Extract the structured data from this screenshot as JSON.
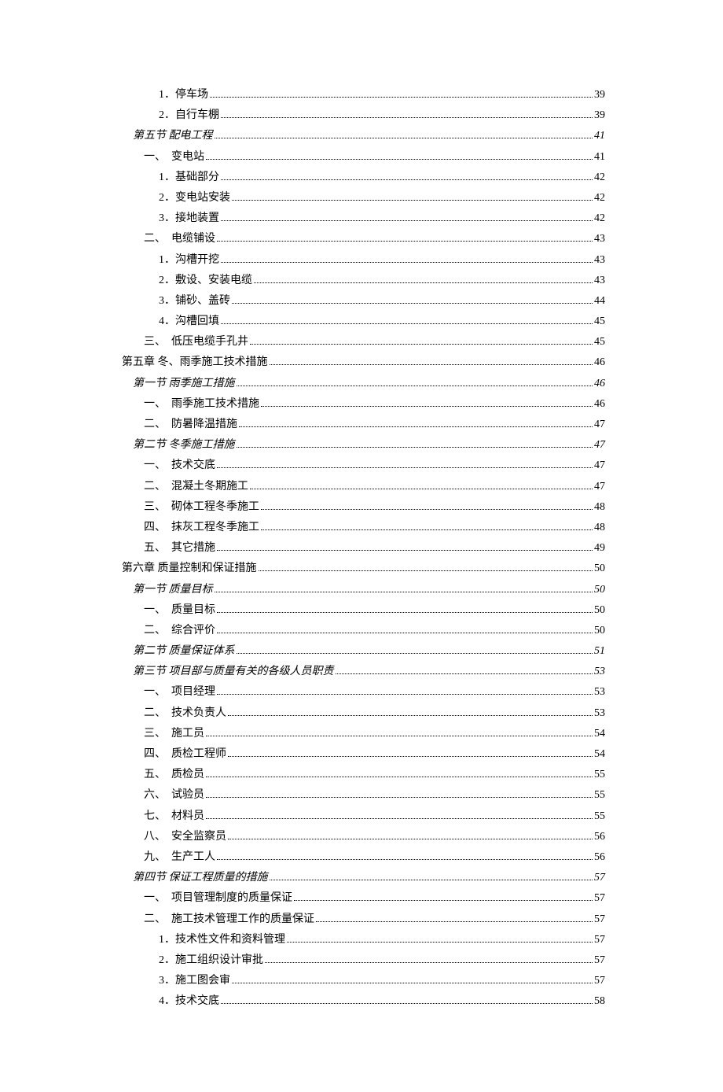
{
  "text_color": "#000000",
  "background_color": "#ffffff",
  "font_size": 14,
  "entries": [
    {
      "indent": 3,
      "italic": false,
      "label": "1．停车场",
      "page": "39"
    },
    {
      "indent": 3,
      "italic": false,
      "label": "2．自行车棚",
      "page": "39"
    },
    {
      "indent": 1,
      "italic": true,
      "label": "第五节  配电工程",
      "page": "41"
    },
    {
      "indent": 2,
      "italic": false,
      "label": "一、　变电站",
      "page": "41"
    },
    {
      "indent": 3,
      "italic": false,
      "label": "1．基础部分",
      "page": "42"
    },
    {
      "indent": 3,
      "italic": false,
      "label": "2．变电站安装",
      "page": "42"
    },
    {
      "indent": 3,
      "italic": false,
      "label": "3．接地装置",
      "page": "42"
    },
    {
      "indent": 2,
      "italic": false,
      "label": "二、　电缆铺设",
      "page": "43"
    },
    {
      "indent": 3,
      "italic": false,
      "label": "1．沟槽开挖",
      "page": "43"
    },
    {
      "indent": 3,
      "italic": false,
      "label": "2．敷设、安装电缆",
      "page": "43"
    },
    {
      "indent": 3,
      "italic": false,
      "label": "3．铺砂、盖砖",
      "page": "44"
    },
    {
      "indent": 3,
      "italic": false,
      "label": "4．沟槽回填",
      "page": "45"
    },
    {
      "indent": 2,
      "italic": false,
      "label": "三、　低压电缆手孔井",
      "page": "45"
    },
    {
      "indent": 0,
      "italic": false,
      "label": "第五章  冬、雨季施工技术措施",
      "page": "46"
    },
    {
      "indent": 1,
      "italic": true,
      "label": "第一节  雨季施工措施",
      "page": "46"
    },
    {
      "indent": 2,
      "italic": false,
      "label": "一、　雨季施工技术措施",
      "page": "46"
    },
    {
      "indent": 2,
      "italic": false,
      "label": "二、　防暑降温措施",
      "page": "47"
    },
    {
      "indent": 1,
      "italic": true,
      "label": "第二节  冬季施工措施",
      "page": "47"
    },
    {
      "indent": 2,
      "italic": false,
      "label": "一、　技术交底",
      "page": "47"
    },
    {
      "indent": 2,
      "italic": false,
      "label": "二、　混凝土冬期施工",
      "page": "47"
    },
    {
      "indent": 2,
      "italic": false,
      "label": "三、　砌体工程冬季施工",
      "page": "48"
    },
    {
      "indent": 2,
      "italic": false,
      "label": "四、　抹灰工程冬季施工",
      "page": "48"
    },
    {
      "indent": 2,
      "italic": false,
      "label": "五、　其它措施",
      "page": "49"
    },
    {
      "indent": 0,
      "italic": false,
      "label": "第六章  质量控制和保证措施",
      "page": "50"
    },
    {
      "indent": 1,
      "italic": true,
      "label": "第一节  质量目标",
      "page": "50"
    },
    {
      "indent": 2,
      "italic": false,
      "label": "一、　质量目标",
      "page": "50"
    },
    {
      "indent": 2,
      "italic": false,
      "label": "二、　综合评价",
      "page": "50"
    },
    {
      "indent": 1,
      "italic": true,
      "label": "第二节  质量保证体系",
      "page": "51"
    },
    {
      "indent": 1,
      "italic": true,
      "label": "第三节  项目部与质量有关的各级人员职责",
      "page": "53"
    },
    {
      "indent": 2,
      "italic": false,
      "label": "一、　项目经理",
      "page": "53"
    },
    {
      "indent": 2,
      "italic": false,
      "label": "二、　技术负责人",
      "page": "53"
    },
    {
      "indent": 2,
      "italic": false,
      "label": "三、　施工员",
      "page": "54"
    },
    {
      "indent": 2,
      "italic": false,
      "label": "四、　质检工程师",
      "page": "54"
    },
    {
      "indent": 2,
      "italic": false,
      "label": "五、　质检员",
      "page": "55"
    },
    {
      "indent": 2,
      "italic": false,
      "label": "六、　试验员",
      "page": "55"
    },
    {
      "indent": 2,
      "italic": false,
      "label": "七、　材料员",
      "page": "55"
    },
    {
      "indent": 2,
      "italic": false,
      "label": "八、　安全监察员",
      "page": "56"
    },
    {
      "indent": 2,
      "italic": false,
      "label": "九、　生产工人",
      "page": "56"
    },
    {
      "indent": 1,
      "italic": true,
      "label": "第四节  保证工程质量的措施",
      "page": "57"
    },
    {
      "indent": 2,
      "italic": false,
      "label": "一、　项目管理制度的质量保证",
      "page": "57"
    },
    {
      "indent": 2,
      "italic": false,
      "label": "二、　施工技术管理工作的质量保证",
      "page": "57"
    },
    {
      "indent": 3,
      "italic": false,
      "label": "1．技术性文件和资料管理",
      "page": "57"
    },
    {
      "indent": 3,
      "italic": false,
      "label": "2．施工组织设计审批",
      "page": "57"
    },
    {
      "indent": 3,
      "italic": false,
      "label": "3．施工图会审",
      "page": "57"
    },
    {
      "indent": 3,
      "italic": false,
      "label": "4．技术交底",
      "page": "58"
    }
  ]
}
